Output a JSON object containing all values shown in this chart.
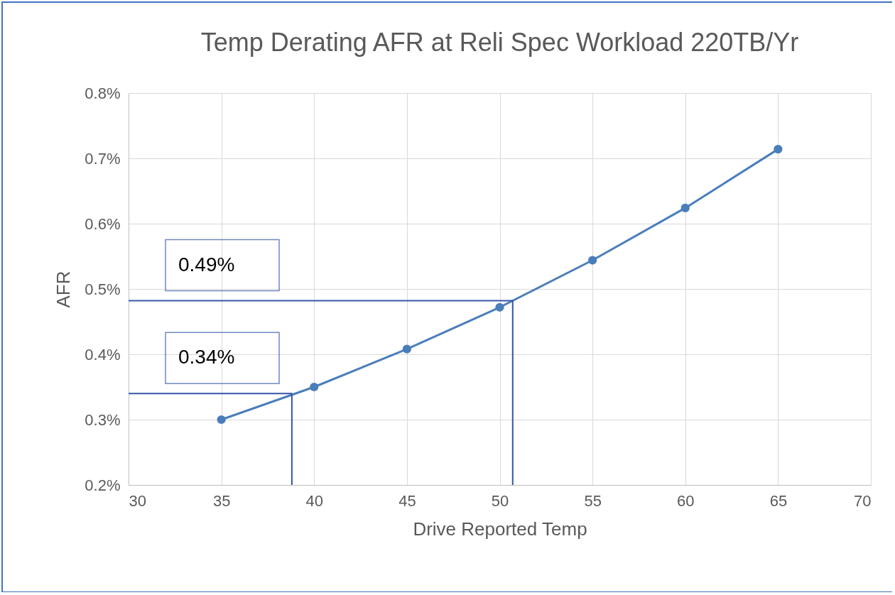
{
  "chart_data": {
    "type": "line",
    "title": "Temp Derating AFR at Reli Spec Workload 220TB/Yr",
    "xlabel": "Drive Reported Temp",
    "ylabel": "AFR",
    "x": [
      35,
      40,
      45,
      50,
      55,
      60,
      65
    ],
    "series": [
      {
        "color": "#4a7ebb",
        "values": [
          0.3,
          0.35,
          0.408,
          0.472,
          0.544,
          0.624,
          0.714
        ],
        "marker": "circle"
      },
      {
        "type": "line",
        "color": "#3556a8",
        "x": [
          30,
          38.8,
          38.8
        ],
        "values": [
          0.34,
          0.34,
          0.2
        ],
        "marker": "none"
      },
      {
        "type": "line",
        "color": "#3556a8",
        "x": [
          30,
          50.7,
          50.7
        ],
        "values": [
          0.482,
          0.482,
          0.2
        ],
        "marker": "none"
      }
    ],
    "annotations": [
      {
        "text": "0.49%",
        "y": 0.482
      },
      {
        "text": "0.34%",
        "y": 0.34
      }
    ],
    "xlim": [
      30,
      70
    ],
    "xticks": [
      30,
      35,
      40,
      45,
      50,
      55,
      60,
      65,
      70
    ],
    "ylim": [
      0.2,
      0.8
    ],
    "yticks": [
      {
        "value": 0.2,
        "label": "0.2%"
      },
      {
        "value": 0.3,
        "label": "0.3%"
      },
      {
        "value": 0.4,
        "label": "0.4%"
      },
      {
        "value": 0.5,
        "label": "0.5%"
      },
      {
        "value": 0.6,
        "label": "0.6%"
      },
      {
        "value": 0.7,
        "label": "0.7%"
      },
      {
        "value": 0.8,
        "label": "0.8%"
      }
    ],
    "grid": true
  }
}
